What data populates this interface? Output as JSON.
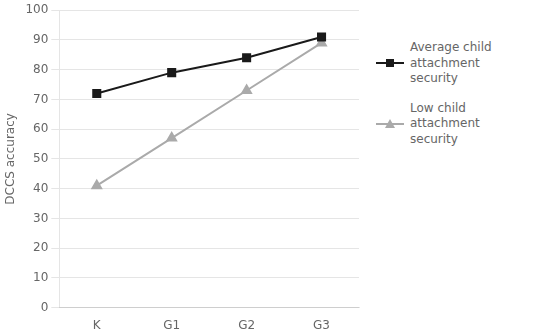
{
  "chart_data": {
    "type": "line",
    "categories": [
      "K",
      "G1",
      "G2",
      "G3"
    ],
    "series": [
      {
        "name": "Average child\nattachment security",
        "color": "#1a1a1a",
        "marker": "square",
        "values": [
          72,
          79,
          84,
          91
        ]
      },
      {
        "name": "Low child attachment\nsecurity",
        "color": "#aaaaaa",
        "marker": "triangle",
        "values": [
          41,
          57,
          73,
          89
        ]
      }
    ],
    "ylabel": "DCCS accuracy",
    "ylim": [
      0,
      100
    ],
    "yticks": [
      0,
      10,
      20,
      30,
      40,
      50,
      60,
      70,
      80,
      90,
      100
    ],
    "grid": true,
    "legend": "right"
  }
}
